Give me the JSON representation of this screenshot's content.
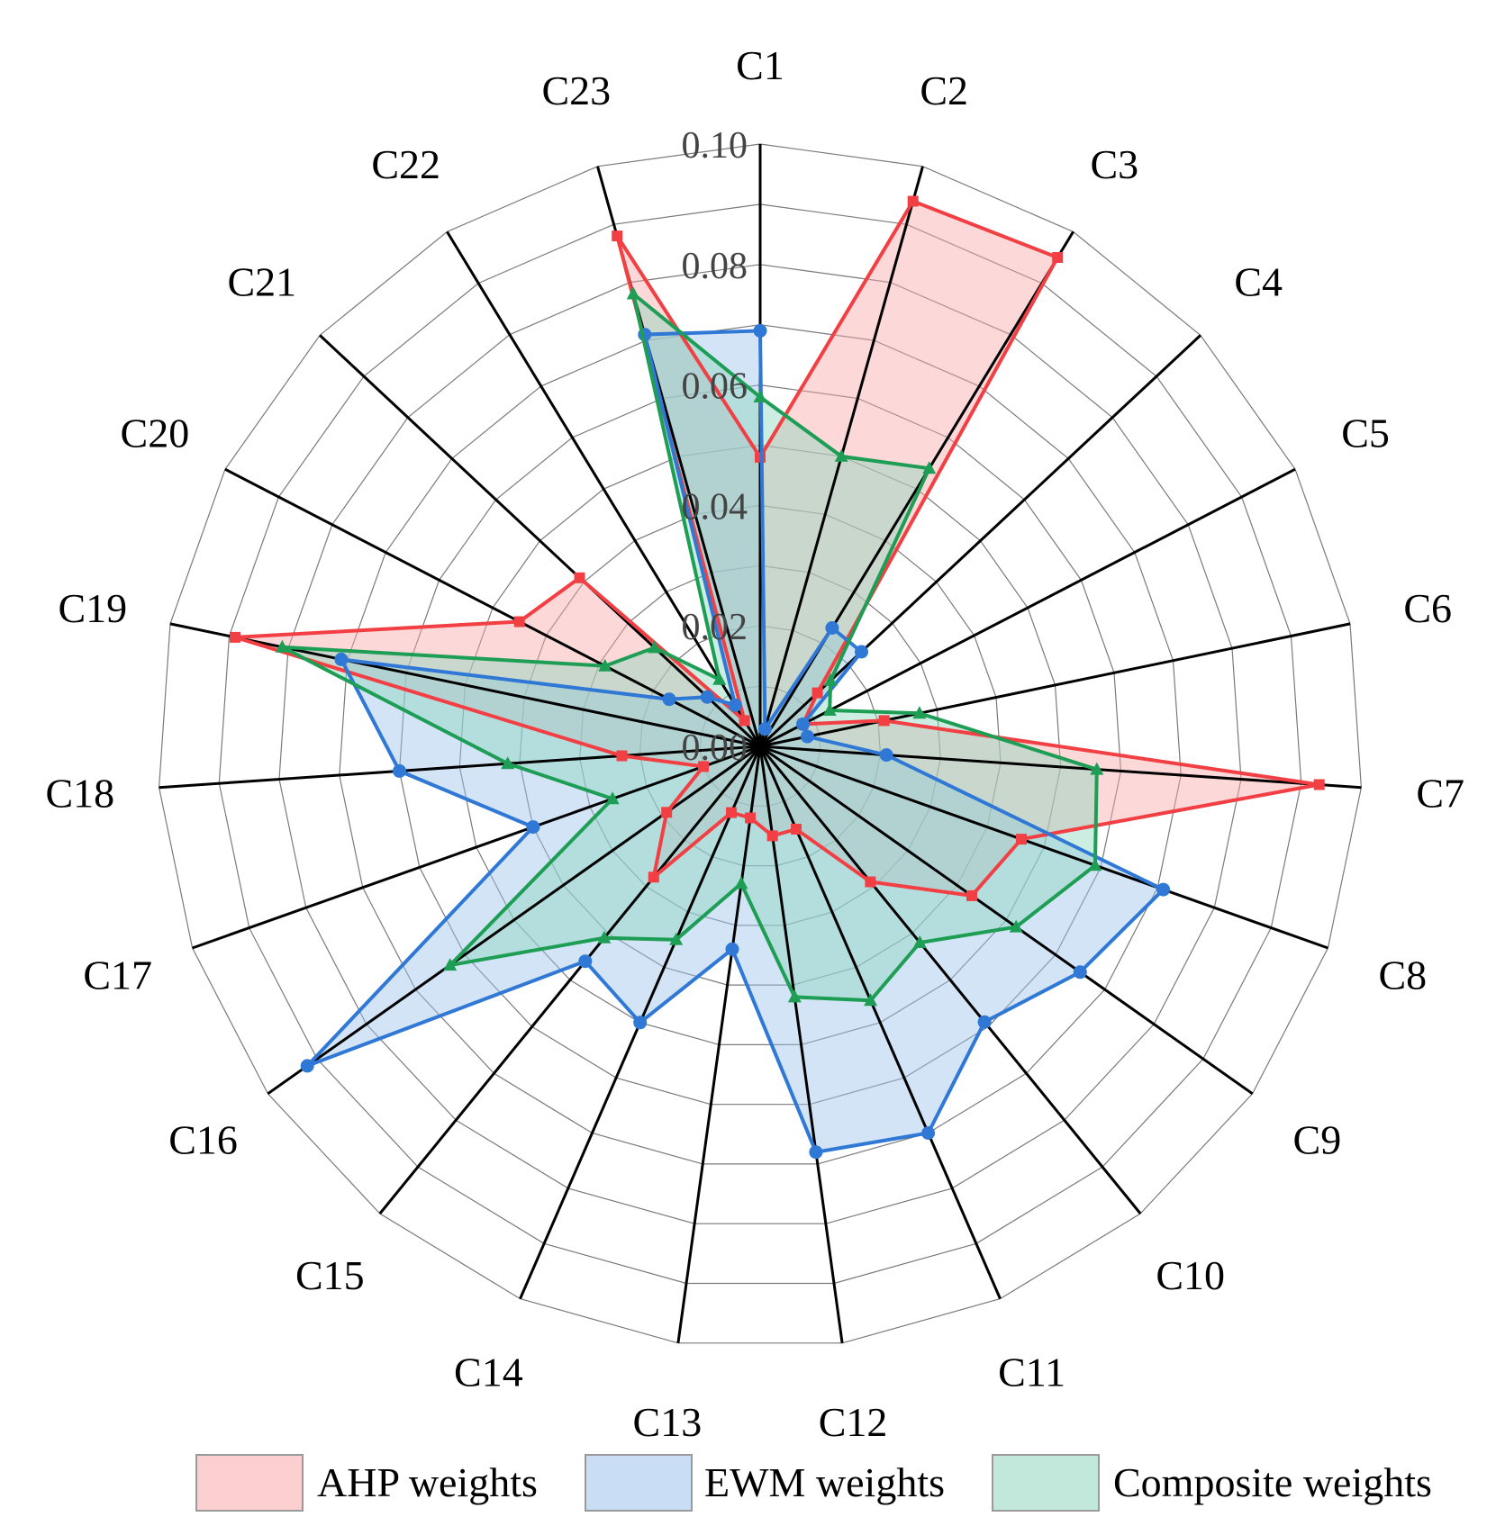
{
  "chart_data": {
    "type": "radar",
    "categories": [
      "C1",
      "C2",
      "C3",
      "C4",
      "C5",
      "C6",
      "C7",
      "C8",
      "C9",
      "C10",
      "C11",
      "C12",
      "C13",
      "C14",
      "C15",
      "C16",
      "C17",
      "C18",
      "C19",
      "C20",
      "C21",
      "C22",
      "C23"
    ],
    "radial_ticks": [
      "0.00",
      "0.02",
      "0.04",
      "0.06",
      "0.08",
      "0.10"
    ],
    "rlim": [
      0,
      0.1
    ],
    "series": [
      {
        "name": "AHP weights",
        "line_color": "#f23f43",
        "fill_color": "#f9a9aa",
        "marker": "square",
        "values": [
          0.048,
          0.094,
          0.095,
          0.013,
          0.008,
          0.021,
          0.093,
          0.046,
          0.043,
          0.029,
          0.015,
          0.015,
          0.012,
          0.012,
          0.028,
          0.019,
          0.01,
          0.023,
          0.089,
          0.045,
          0.041,
          0.005,
          0.088
        ]
      },
      {
        "name": "EWM weights",
        "line_color": "#2f78d6",
        "fill_color": "#9cc3ec",
        "marker": "circle",
        "values": [
          0.069,
          0.003,
          0.023,
          0.023,
          0.008,
          0.008,
          0.021,
          0.071,
          0.065,
          0.059,
          0.07,
          0.068,
          0.034,
          0.05,
          0.046,
          0.092,
          0.04,
          0.06,
          0.071,
          0.017,
          0.012,
          0.008,
          0.071
        ]
      },
      {
        "name": "Composite weights",
        "line_color": "#1e9e55",
        "fill_color": "#8fd6bf",
        "marker": "triangle",
        "values": [
          0.058,
          0.05,
          0.054,
          0.016,
          0.013,
          0.027,
          0.056,
          0.059,
          0.052,
          0.042,
          0.046,
          0.042,
          0.023,
          0.035,
          0.041,
          0.063,
          0.026,
          0.042,
          0.081,
          0.029,
          0.024,
          0.013,
          0.078
        ]
      }
    ]
  }
}
